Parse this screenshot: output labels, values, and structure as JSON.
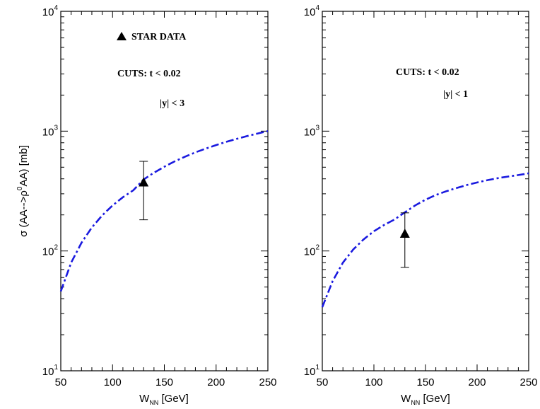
{
  "chart_data": [
    {
      "type": "line",
      "xlabel": {
        "main": "W",
        "sub": "NN",
        "unit": " [GeV]"
      },
      "ylabel": {
        "pre": "σ (AA-->ρ",
        "sup": "0",
        "post": "AA) [mb]"
      },
      "xlim": [
        50,
        250
      ],
      "ylim": [
        10,
        10000
      ],
      "yscale": "log",
      "xticks": [
        "50",
        "100",
        "150",
        "200",
        "250"
      ],
      "yticks": [
        {
          "base": "10",
          "exp": "1"
        },
        {
          "base": "10",
          "exp": "2"
        },
        {
          "base": "10",
          "exp": "3"
        },
        {
          "base": "10",
          "exp": "4"
        }
      ],
      "grid": false,
      "series": [
        {
          "style": "dash-dot",
          "color": "#1a1adf",
          "x": [
            50,
            60,
            70,
            80,
            90,
            100,
            110,
            120,
            130,
            140,
            150,
            160,
            170,
            180,
            190,
            200,
            210,
            220,
            230,
            240,
            250
          ],
          "y": [
            46,
            80,
            117,
            157,
            198,
            240,
            281,
            321,
            395,
            450,
            505,
            560,
            612,
            665,
            715,
            765,
            815,
            863,
            910,
            955,
            1000
          ]
        }
      ],
      "points": [
        {
          "marker": "triangle",
          "x": 130,
          "y": 370,
          "yerr_low": 182,
          "yerr_high": 560
        }
      ],
      "annotations": {
        "legend": "STAR DATA",
        "cuts": "CUTS:  t < 0.02",
        "rapidity": "|y| < 3"
      }
    },
    {
      "type": "line",
      "xlabel": {
        "main": "W",
        "sub": "NN",
        "unit": " [GeV]"
      },
      "xlim": [
        50,
        250
      ],
      "ylim": [
        10,
        10000
      ],
      "yscale": "log",
      "xticks": [
        "50",
        "100",
        "150",
        "200",
        "250"
      ],
      "yticks": [
        {
          "base": "10",
          "exp": "1"
        },
        {
          "base": "10",
          "exp": "2"
        },
        {
          "base": "10",
          "exp": "3"
        },
        {
          "base": "10",
          "exp": "4"
        }
      ],
      "grid": false,
      "series": [
        {
          "style": "dash-dot",
          "color": "#1a1adf",
          "x": [
            50,
            60,
            70,
            80,
            90,
            100,
            110,
            120,
            130,
            140,
            150,
            160,
            170,
            180,
            190,
            200,
            210,
            220,
            230,
            240,
            250
          ],
          "y": [
            34,
            56,
            80,
            103,
            125,
            146,
            165,
            183,
            210,
            240,
            268,
            293,
            315,
            335,
            355,
            373,
            390,
            405,
            418,
            430,
            445
          ]
        }
      ],
      "points": [
        {
          "marker": "triangle",
          "x": 130,
          "y": 138,
          "yerr_low": 73,
          "yerr_high": 208
        }
      ],
      "annotations": {
        "cuts": "CUTS:  t < 0.02",
        "rapidity": "|y| < 1"
      }
    }
  ]
}
